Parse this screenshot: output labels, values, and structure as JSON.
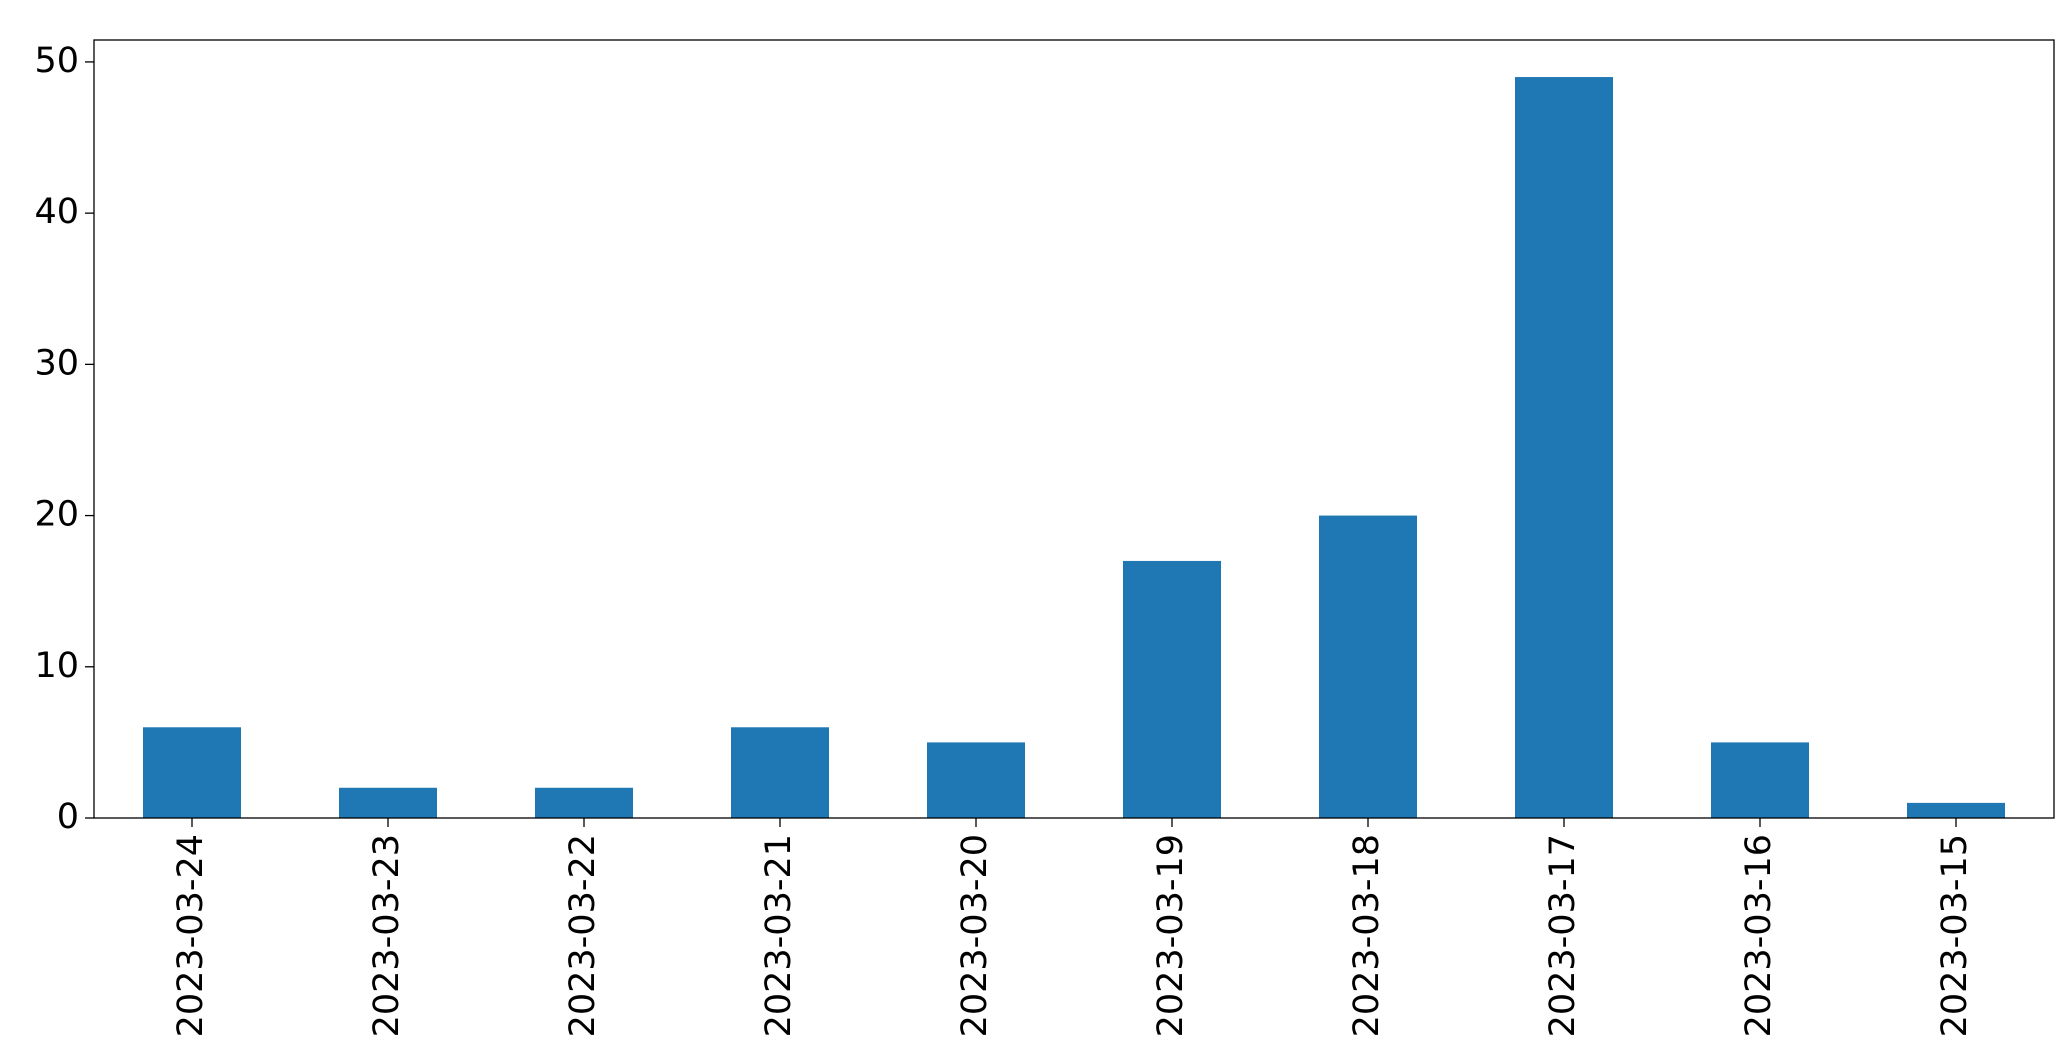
{
  "chart_data": {
    "type": "bar",
    "categories": [
      "2023-03-24",
      "2023-03-23",
      "2023-03-22",
      "2023-03-21",
      "2023-03-20",
      "2023-03-19",
      "2023-03-18",
      "2023-03-17",
      "2023-03-16",
      "2023-03-15"
    ],
    "values": [
      6,
      2,
      2,
      6,
      5,
      17,
      20,
      49,
      5,
      1
    ],
    "color": "#1f77b4",
    "ylim": [
      0,
      51.45
    ],
    "yticks": [
      0,
      10,
      20,
      30,
      40,
      50
    ],
    "grid": false
  }
}
